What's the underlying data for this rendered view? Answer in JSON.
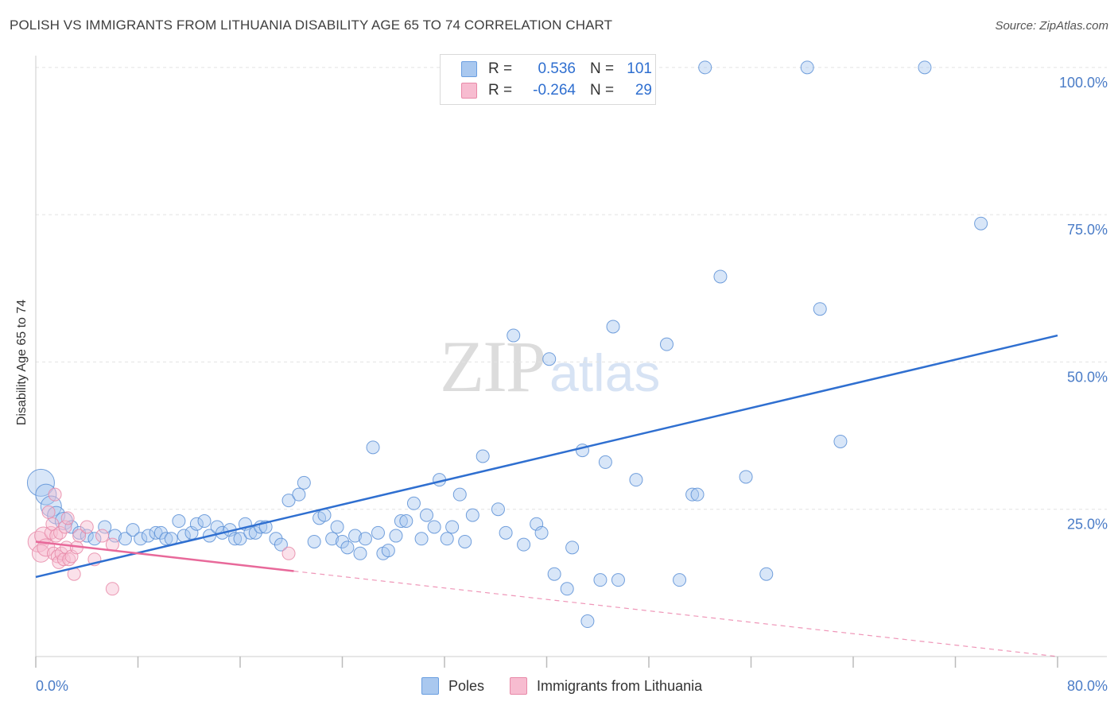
{
  "title": "POLISH VS IMMIGRANTS FROM LITHUANIA DISABILITY AGE 65 TO 74 CORRELATION CHART",
  "source": "Source: ZipAtlas.com",
  "watermark": {
    "zip": "ZIP",
    "atlas": "atlas"
  },
  "legend_top": [
    {
      "series": "Poles",
      "r_label": "R =",
      "r_value": "0.536",
      "n_label": "N =",
      "n_value": "101",
      "color": "#a9c8ef",
      "border": "#6a9ee0"
    },
    {
      "series": "Immigrants from Lithuania",
      "r_label": "R =",
      "r_value": "-0.264",
      "n_label": "N =",
      "n_value": "29",
      "color": "#f7bcd0",
      "border": "#e889a8"
    }
  ],
  "colors": {
    "poles_fill": "#a9c8ef",
    "poles_stroke": "#5b8fd6",
    "poles_line": "#2f6fd0",
    "lith_fill": "#f7bcd0",
    "lith_stroke": "#e889a8",
    "lith_line": "#e8699a",
    "axis_text": "#4a7cc7",
    "grid": "#e2e2e2"
  },
  "chart_data": {
    "type": "scatter",
    "title": "POLISH VS IMMIGRANTS FROM LITHUANIA DISABILITY AGE 65 TO 74 CORRELATION CHART",
    "xlabel": "",
    "ylabel": "Disability Age 65 to 74",
    "xlim": [
      0,
      80
    ],
    "ylim": [
      0,
      102
    ],
    "x_tick_labels": [
      "0.0%",
      "80.0%"
    ],
    "y_ticks": [
      25,
      50,
      75,
      100
    ],
    "y_tick_labels": [
      "25.0%",
      "50.0%",
      "75.0%",
      "100.0%"
    ],
    "grid": true,
    "legend_position": "bottom",
    "series": [
      {
        "name": "Poles",
        "trend": {
          "x": [
            0,
            80
          ],
          "y": [
            13.5,
            54.5
          ]
        },
        "points": [
          [
            0.4,
            29.5,
            4
          ],
          [
            0.8,
            27.5,
            3
          ],
          [
            1.2,
            25.5,
            3
          ],
          [
            1.6,
            24,
            2
          ],
          [
            2.2,
            23,
            2
          ],
          [
            2.8,
            22,
            1
          ],
          [
            3.4,
            21,
            1
          ],
          [
            4.0,
            20.5,
            1
          ],
          [
            4.6,
            20,
            1
          ],
          [
            5.4,
            22,
            1
          ],
          [
            6.2,
            20.5,
            1
          ],
          [
            7.0,
            20,
            1
          ],
          [
            7.6,
            21.5,
            1
          ],
          [
            8.2,
            20,
            1
          ],
          [
            8.8,
            20.5,
            1
          ],
          [
            9.4,
            21,
            1
          ],
          [
            9.8,
            21,
            1
          ],
          [
            10.2,
            20,
            1
          ],
          [
            10.6,
            20,
            1
          ],
          [
            11.2,
            23,
            1
          ],
          [
            11.6,
            20.5,
            1
          ],
          [
            12.2,
            21,
            1
          ],
          [
            12.6,
            22.5,
            1
          ],
          [
            13.2,
            23,
            1
          ],
          [
            13.6,
            20.5,
            1
          ],
          [
            14.2,
            22,
            1
          ],
          [
            14.6,
            21,
            1
          ],
          [
            15.2,
            21.5,
            1
          ],
          [
            15.6,
            20,
            1
          ],
          [
            16.0,
            20,
            1
          ],
          [
            16.4,
            22.5,
            1
          ],
          [
            16.8,
            21,
            1
          ],
          [
            17.2,
            21,
            1
          ],
          [
            17.6,
            22,
            1
          ],
          [
            18.0,
            22,
            1
          ],
          [
            18.8,
            20,
            1
          ],
          [
            19.2,
            19,
            1
          ],
          [
            19.8,
            26.5,
            1
          ],
          [
            20.6,
            27.5,
            1
          ],
          [
            21.0,
            29.5,
            1
          ],
          [
            21.8,
            19.5,
            1
          ],
          [
            22.2,
            23.5,
            1
          ],
          [
            22.6,
            24,
            1
          ],
          [
            23.2,
            20,
            1
          ],
          [
            23.6,
            22,
            1
          ],
          [
            24.0,
            19.5,
            1
          ],
          [
            24.4,
            18.5,
            1
          ],
          [
            25.0,
            20.5,
            1
          ],
          [
            25.4,
            17.5,
            1
          ],
          [
            25.8,
            20,
            1
          ],
          [
            26.4,
            35.5,
            1
          ],
          [
            26.8,
            21,
            1
          ],
          [
            27.2,
            17.5,
            1
          ],
          [
            27.6,
            18,
            1
          ],
          [
            28.2,
            20.5,
            1
          ],
          [
            28.6,
            23,
            1
          ],
          [
            29.0,
            23,
            1
          ],
          [
            29.6,
            26,
            1
          ],
          [
            30.2,
            20,
            1
          ],
          [
            30.6,
            24,
            1
          ],
          [
            31.2,
            22,
            1
          ],
          [
            31.6,
            30,
            1
          ],
          [
            32.2,
            20,
            1
          ],
          [
            32.6,
            22,
            1
          ],
          [
            33.2,
            27.5,
            1
          ],
          [
            33.6,
            19.5,
            1
          ],
          [
            34.2,
            24,
            1
          ],
          [
            35.0,
            34,
            1
          ],
          [
            36.2,
            25,
            1
          ],
          [
            36.8,
            21,
            1
          ],
          [
            37.4,
            54.5,
            1
          ],
          [
            38.2,
            19,
            1
          ],
          [
            39.2,
            22.5,
            1
          ],
          [
            39.6,
            21,
            1
          ],
          [
            40.2,
            50.5,
            1
          ],
          [
            40.6,
            14,
            1
          ],
          [
            41.6,
            11.5,
            1
          ],
          [
            42.0,
            18.5,
            1
          ],
          [
            42.8,
            35,
            1
          ],
          [
            43.2,
            6,
            1
          ],
          [
            44.2,
            13,
            1
          ],
          [
            44.6,
            33,
            1
          ],
          [
            45.2,
            56,
            1
          ],
          [
            45.6,
            13,
            1
          ],
          [
            47.0,
            30,
            1
          ],
          [
            49.4,
            53,
            1
          ],
          [
            50.4,
            13,
            1
          ],
          [
            51.4,
            27.5,
            1
          ],
          [
            51.8,
            27.5,
            1
          ],
          [
            52.4,
            100,
            1
          ],
          [
            53.6,
            64.5,
            1
          ],
          [
            55.6,
            30.5,
            1
          ],
          [
            57.2,
            14,
            1
          ],
          [
            60.4,
            100,
            1
          ],
          [
            61.4,
            59,
            1
          ],
          [
            63.0,
            36.5,
            1
          ],
          [
            69.6,
            100,
            1
          ],
          [
            74.0,
            73.5,
            1
          ]
        ]
      },
      {
        "name": "Immigrants from Lithuania",
        "trend": {
          "x": [
            0,
            20.2
          ],
          "y": [
            19.5,
            14.5
          ]
        },
        "trend_dashed": {
          "x": [
            20.2,
            80
          ],
          "y": [
            14.5,
            0
          ]
        },
        "points": [
          [
            0.2,
            19.5,
            3
          ],
          [
            0.4,
            17.5,
            2
          ],
          [
            0.6,
            20.5,
            2
          ],
          [
            0.8,
            18.5,
            2
          ],
          [
            1.0,
            24.5,
            1
          ],
          [
            1.2,
            21,
            1
          ],
          [
            1.3,
            22.5,
            1
          ],
          [
            1.4,
            17.5,
            1
          ],
          [
            1.5,
            27.5,
            1
          ],
          [
            1.6,
            20.5,
            1
          ],
          [
            1.7,
            17,
            1
          ],
          [
            1.8,
            16,
            1
          ],
          [
            1.9,
            21,
            1
          ],
          [
            2.0,
            17.5,
            1
          ],
          [
            2.2,
            16.5,
            1
          ],
          [
            2.3,
            22,
            1
          ],
          [
            2.4,
            18.5,
            1
          ],
          [
            2.5,
            23.5,
            1
          ],
          [
            2.6,
            16.5,
            1
          ],
          [
            2.8,
            17,
            1
          ],
          [
            3.0,
            14,
            1
          ],
          [
            3.2,
            18.5,
            1
          ],
          [
            3.4,
            20.5,
            1
          ],
          [
            4.0,
            22,
            1
          ],
          [
            4.6,
            16.5,
            1
          ],
          [
            5.2,
            20.5,
            1
          ],
          [
            6.0,
            19,
            1
          ],
          [
            6.0,
            11.5,
            1
          ],
          [
            19.8,
            17.5,
            1
          ]
        ]
      }
    ]
  }
}
